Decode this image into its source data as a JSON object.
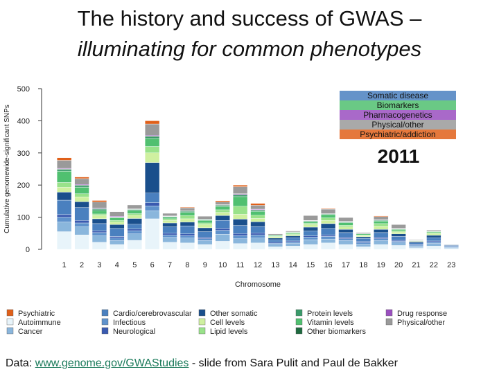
{
  "slide": {
    "title_line1": "The history and success of GWAS –",
    "title_line2": "illuminating for common phenotypes",
    "footer_prefix": "Data: ",
    "footer_link": "www.genome.gov/GWAStudies",
    "footer_suffix": " - slide from Sara Pulit and Paul de Bakker"
  },
  "chart_data": {
    "type": "bar",
    "stacked": true,
    "title": "",
    "year_label": "2011",
    "xlabel": "Chromosome",
    "ylabel": "Cumulative genomewide-significant SNPs",
    "ylim": [
      0,
      500
    ],
    "yticks": [
      0,
      100,
      200,
      300,
      400,
      500
    ],
    "grid": false,
    "categories": [
      "1",
      "2",
      "3",
      "4",
      "5",
      "6",
      "7",
      "8",
      "9",
      "10",
      "11",
      "12",
      "13",
      "14",
      "15",
      "16",
      "17",
      "18",
      "19",
      "20",
      "21",
      "22",
      "23"
    ],
    "series": [
      {
        "name": "Autoimmune",
        "color": "#e8f4fa",
        "values": [
          55,
          45,
          22,
          15,
          28,
          95,
          22,
          20,
          15,
          25,
          18,
          20,
          8,
          10,
          15,
          20,
          15,
          8,
          15,
          12,
          5,
          10,
          3
        ]
      },
      {
        "name": "Cancer",
        "color": "#8ab6dc",
        "values": [
          30,
          25,
          20,
          12,
          20,
          25,
          15,
          15,
          12,
          22,
          15,
          15,
          7,
          8,
          15,
          12,
          12,
          8,
          12,
          8,
          5,
          8,
          3
        ]
      },
      {
        "name": "Infectious",
        "color": "#5f92cc",
        "values": [
          15,
          12,
          10,
          8,
          10,
          15,
          8,
          8,
          6,
          12,
          10,
          10,
          4,
          5,
          8,
          8,
          6,
          5,
          6,
          5,
          3,
          5,
          2
        ]
      },
      {
        "name": "Neurological",
        "color": "#3a5ab0",
        "values": [
          8,
          8,
          6,
          5,
          5,
          10,
          5,
          5,
          4,
          6,
          6,
          6,
          3,
          3,
          4,
          5,
          4,
          3,
          4,
          3,
          2,
          3,
          1
        ]
      },
      {
        "name": "Cardio/cerebrovascular",
        "color": "#4a80bf",
        "values": [
          45,
          40,
          22,
          25,
          15,
          30,
          20,
          25,
          18,
          25,
          25,
          20,
          8,
          10,
          15,
          20,
          15,
          10,
          15,
          12,
          5,
          10,
          3
        ]
      },
      {
        "name": "Other somatic",
        "color": "#1a4f8c",
        "values": [
          25,
          18,
          15,
          12,
          18,
          95,
          12,
          12,
          12,
          15,
          20,
          15,
          5,
          6,
          12,
          15,
          10,
          5,
          10,
          8,
          4,
          8,
          2
        ]
      },
      {
        "name": "Cell levels",
        "color": "#cff0a0",
        "values": [
          15,
          15,
          10,
          8,
          10,
          30,
          8,
          10,
          10,
          10,
          15,
          10,
          4,
          4,
          8,
          10,
          8,
          4,
          10,
          6,
          2,
          5,
          0
        ]
      },
      {
        "name": "Lipid levels",
        "color": "#99e28a",
        "values": [
          15,
          10,
          5,
          5,
          5,
          20,
          5,
          10,
          5,
          8,
          25,
          10,
          2,
          3,
          4,
          8,
          5,
          2,
          8,
          4,
          1,
          3,
          0
        ]
      },
      {
        "name": "Vitamin levels",
        "color": "#50c070",
        "values": [
          35,
          20,
          10,
          8,
          10,
          25,
          5,
          10,
          8,
          10,
          30,
          12,
          3,
          3,
          5,
          10,
          8,
          3,
          8,
          4,
          1,
          3,
          0
        ]
      },
      {
        "name": "Protein levels",
        "color": "#3a9a6a",
        "values": [
          5,
          5,
          5,
          2,
          3,
          5,
          2,
          3,
          2,
          3,
          5,
          3,
          1,
          1,
          2,
          2,
          2,
          1,
          2,
          1,
          0,
          1,
          0
        ]
      },
      {
        "name": "Other biomarkers",
        "color": "#1f6a40",
        "values": [
          2,
          2,
          2,
          1,
          1,
          3,
          1,
          2,
          1,
          2,
          2,
          2,
          0,
          1,
          1,
          1,
          1,
          0,
          1,
          1,
          0,
          1,
          0
        ]
      },
      {
        "name": "Drug response",
        "color": "#9a4fbf",
        "values": [
          2,
          2,
          2,
          2,
          1,
          2,
          1,
          1,
          1,
          1,
          2,
          2,
          0,
          0,
          1,
          0,
          1,
          0,
          1,
          1,
          0,
          0,
          0
        ]
      },
      {
        "name": "Physical/other",
        "color": "#9a9a9a",
        "values": [
          25,
          18,
          18,
          14,
          12,
          35,
          8,
          8,
          9,
          8,
          22,
          12,
          3,
          3,
          15,
          14,
          12,
          3,
          10,
          12,
          2,
          3,
          1
        ]
      },
      {
        "name": "Psychiatric",
        "color": "#e0601a",
        "values": [
          8,
          5,
          5,
          0,
          0,
          10,
          0,
          2,
          0,
          4,
          5,
          6,
          0,
          0,
          0,
          2,
          0,
          0,
          2,
          0,
          0,
          0,
          0
        ]
      }
    ],
    "legend": {
      "placement": "bottom",
      "columns": [
        [
          "Psychiatric",
          "Autoimmune",
          "Cancer"
        ],
        [
          "Cardio/cerebrovascular",
          "Infectious",
          "Neurological"
        ],
        [
          "Other somatic",
          "Cell levels",
          "Lipid levels"
        ],
        [
          "Protein levels",
          "Vitamin levels",
          "Other biomarkers"
        ],
        [
          "Drug response",
          "Physical/other"
        ]
      ]
    },
    "category_key": {
      "placement": "top-right",
      "items": [
        {
          "label": "Somatic disease",
          "color": "#4a80bf"
        },
        {
          "label": "Biomarkers",
          "color": "#50c070"
        },
        {
          "label": "Pharmacogenetics",
          "color": "#9a4fbf"
        },
        {
          "label": "Physical/other",
          "color": "#9a9a9a"
        },
        {
          "label": "Psychiatric/addiction",
          "color": "#e0601a"
        }
      ]
    }
  }
}
